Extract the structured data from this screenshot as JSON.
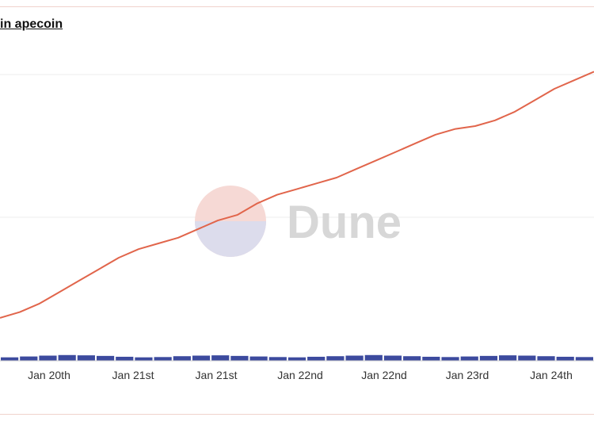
{
  "chart_data": {
    "type": "line",
    "title": "in apecoin",
    "x_ticks": [
      "Jan 20th",
      "Jan 21st",
      "Jan 21st",
      "Jan 22nd",
      "Jan 22nd",
      "Jan 23rd",
      "Jan 24th"
    ],
    "grid": true,
    "series": [
      {
        "kind": "line",
        "color": "#e1654b",
        "values": [
          0,
          0.02,
          0.05,
          0.09,
          0.13,
          0.17,
          0.21,
          0.24,
          0.26,
          0.28,
          0.31,
          0.34,
          0.36,
          0.4,
          0.43,
          0.45,
          0.47,
          0.49,
          0.52,
          0.55,
          0.58,
          0.61,
          0.64,
          0.66,
          0.67,
          0.69,
          0.72,
          0.76,
          0.8,
          0.83,
          0.86
        ]
      },
      {
        "kind": "bar",
        "color": "#3c4a9e",
        "values": [
          0.012,
          0.015,
          0.018,
          0.02,
          0.019,
          0.017,
          0.014,
          0.012,
          0.013,
          0.016,
          0.018,
          0.019,
          0.017,
          0.015,
          0.013,
          0.012,
          0.014,
          0.016,
          0.018,
          0.02,
          0.018,
          0.016,
          0.014,
          0.013,
          0.015,
          0.017,
          0.019,
          0.018,
          0.016,
          0.014,
          0.013
        ]
      }
    ]
  },
  "watermark": {
    "text": "Dune"
  }
}
